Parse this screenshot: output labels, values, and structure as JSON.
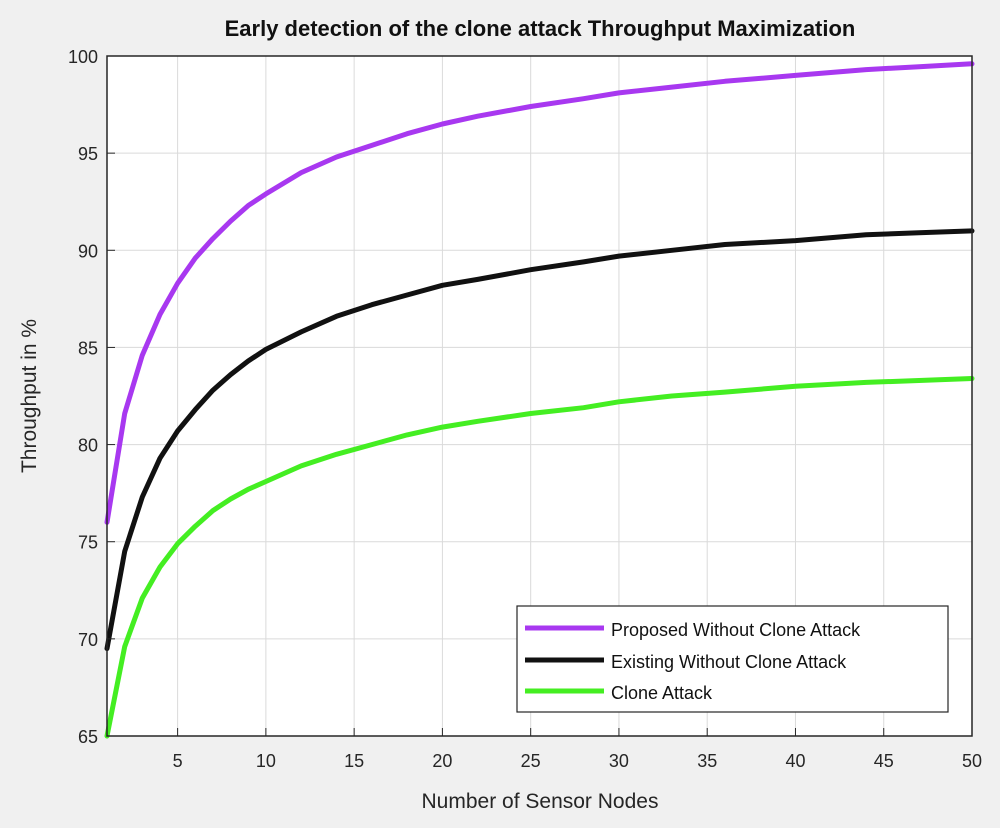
{
  "chart_data": {
    "type": "line",
    "title": "Early detection of the clone attack Throughput Maximization",
    "xlabel": "Number of Sensor Nodes",
    "ylabel": "Throughput in %",
    "xlim": [
      1,
      50
    ],
    "ylim": [
      65,
      100
    ],
    "xticks": [
      5,
      10,
      15,
      20,
      25,
      30,
      35,
      40,
      45,
      50
    ],
    "yticks": [
      65,
      70,
      75,
      80,
      85,
      90,
      95,
      100
    ],
    "grid": true,
    "legend_position": "bottom-right",
    "x": [
      1,
      2,
      3,
      4,
      5,
      6,
      7,
      8,
      9,
      10,
      12,
      14,
      16,
      18,
      20,
      22,
      25,
      28,
      30,
      33,
      36,
      40,
      44,
      47,
      50
    ],
    "series": [
      {
        "name": "Proposed Without Clone Attack",
        "color": "#a838f0",
        "values": [
          76.0,
          81.6,
          84.6,
          86.7,
          88.3,
          89.6,
          90.6,
          91.5,
          92.3,
          92.9,
          94.0,
          94.8,
          95.4,
          96.0,
          96.5,
          96.9,
          97.4,
          97.8,
          98.1,
          98.4,
          98.7,
          99.0,
          99.3,
          99.45,
          99.6
        ]
      },
      {
        "name": "Existing Without Clone Attack",
        "color": "#111111",
        "values": [
          69.5,
          74.5,
          77.3,
          79.3,
          80.7,
          81.8,
          82.8,
          83.6,
          84.3,
          84.9,
          85.8,
          86.6,
          87.2,
          87.7,
          88.2,
          88.5,
          89.0,
          89.4,
          89.7,
          90.0,
          90.3,
          90.5,
          90.8,
          90.9,
          91.0
        ]
      },
      {
        "name": "Clone Attack",
        "color": "#44ee22",
        "values": [
          65.0,
          69.6,
          72.1,
          73.7,
          74.9,
          75.8,
          76.6,
          77.2,
          77.7,
          78.1,
          78.9,
          79.5,
          80.0,
          80.5,
          80.9,
          81.2,
          81.6,
          81.9,
          82.2,
          82.5,
          82.7,
          83.0,
          83.2,
          83.3,
          83.4
        ]
      }
    ]
  }
}
